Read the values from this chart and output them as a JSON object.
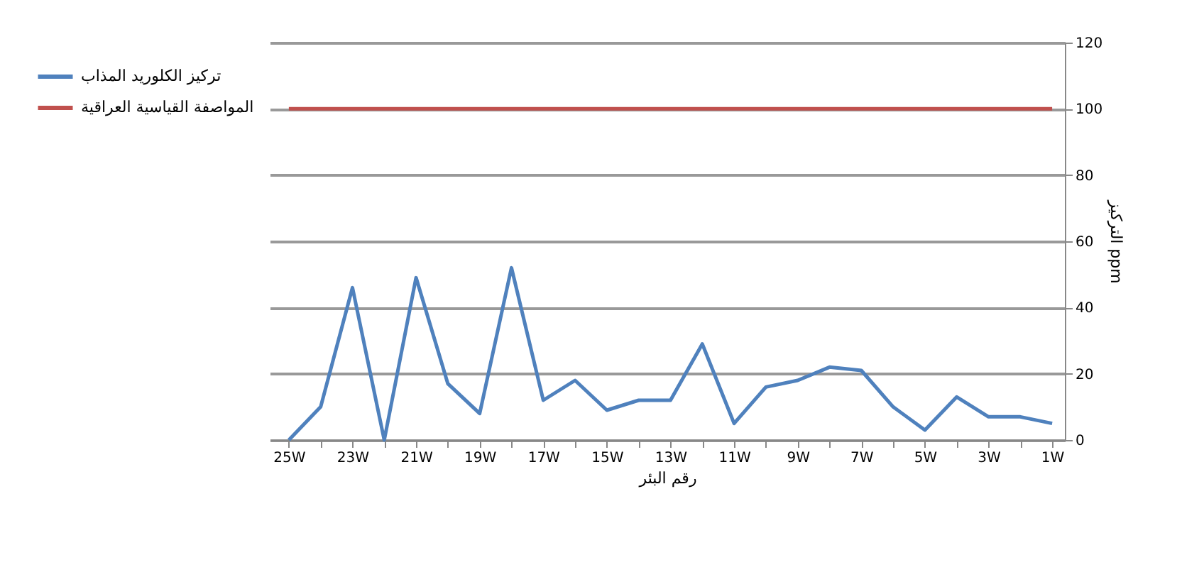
{
  "chart_data": {
    "type": "line",
    "xlabel": "رقم البئر",
    "ylabel": "التركيز ppm",
    "categories": [
      "25W",
      null,
      "23W",
      null,
      "21W",
      null,
      "19W",
      null,
      "17W",
      null,
      "15W",
      null,
      "13W",
      null,
      "11W",
      null,
      "9W",
      null,
      "7W",
      null,
      "5W",
      null,
      "3W",
      null,
      "1W"
    ],
    "series": [
      {
        "name": "تركيز الكلوريد المذاب",
        "color": "#4f81bd",
        "values": [
          0,
          10,
          46,
          0,
          49,
          17,
          8,
          52,
          12,
          18,
          9,
          12,
          12,
          29,
          5,
          16,
          18,
          22,
          21,
          10,
          3,
          13,
          7,
          7,
          5
        ]
      },
      {
        "name": "المواصفة القياسية العراقية",
        "color": "#c0504d",
        "values": [
          100,
          100,
          100,
          100,
          100,
          100,
          100,
          100,
          100,
          100,
          100,
          100,
          100,
          100,
          100,
          100,
          100,
          100,
          100,
          100,
          100,
          100,
          100,
          100,
          100
        ]
      }
    ],
    "ylim": [
      0,
      120
    ],
    "yticks": [
      0,
      20,
      40,
      60,
      80,
      100,
      120
    ],
    "grid": "y",
    "legend": "left",
    "marker": "none",
    "line_style": "solid"
  }
}
